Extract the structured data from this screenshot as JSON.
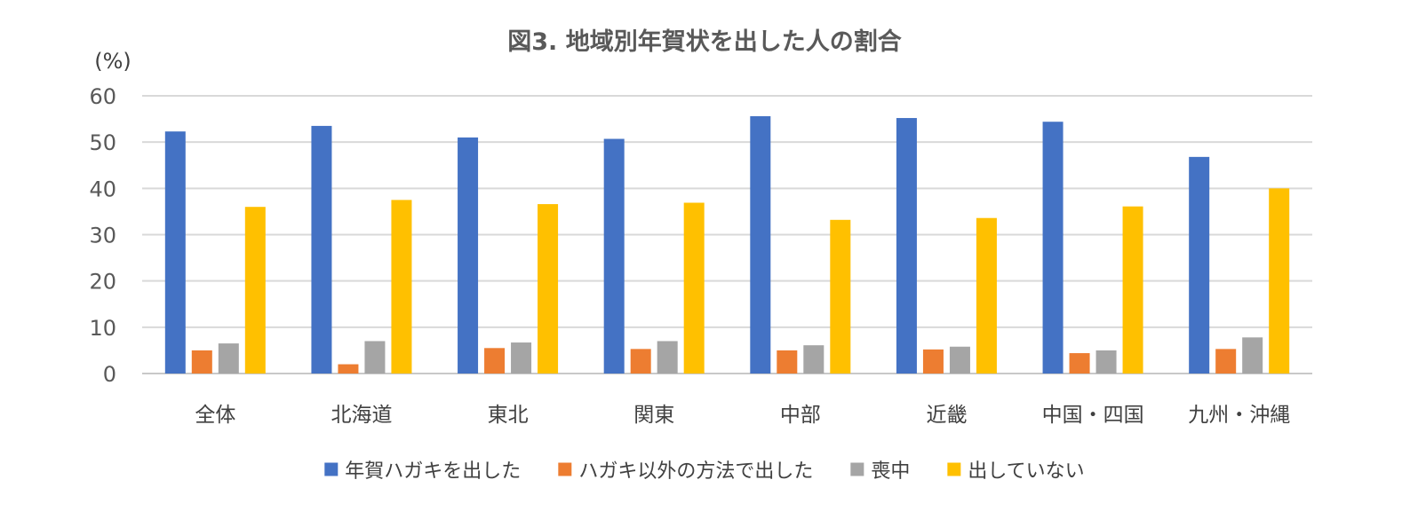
{
  "chart_data": {
    "type": "bar",
    "title": "図3. 地域別年賀状を出した人の割合",
    "ylabel": "(%)",
    "xlabel": "",
    "ylim": [
      0,
      60
    ],
    "yticks": [
      0,
      10,
      20,
      30,
      40,
      50,
      60
    ],
    "grid": true,
    "legend_position": "bottom",
    "categories": [
      "全体",
      "北海道",
      "東北",
      "関東",
      "中部",
      "近畿",
      "中国・四国",
      "九州・沖縄"
    ],
    "series": [
      {
        "name": "年賀ハガキを出した",
        "color": "#4472C4",
        "values": [
          52.3,
          53.5,
          51.0,
          50.7,
          55.6,
          55.2,
          54.4,
          46.8
        ]
      },
      {
        "name": "ハガキ以外の方法で出した",
        "color": "#ED7D31",
        "values": [
          5.0,
          2.0,
          5.5,
          5.3,
          5.0,
          5.2,
          4.4,
          5.3
        ]
      },
      {
        "name": "喪中",
        "color": "#A5A5A5",
        "values": [
          6.5,
          7.0,
          6.7,
          7.0,
          6.1,
          5.8,
          5.0,
          7.8
        ]
      },
      {
        "name": "出していない",
        "color": "#FFC000",
        "values": [
          36.0,
          37.5,
          36.6,
          36.9,
          33.2,
          33.6,
          36.1,
          40.0
        ]
      }
    ]
  }
}
